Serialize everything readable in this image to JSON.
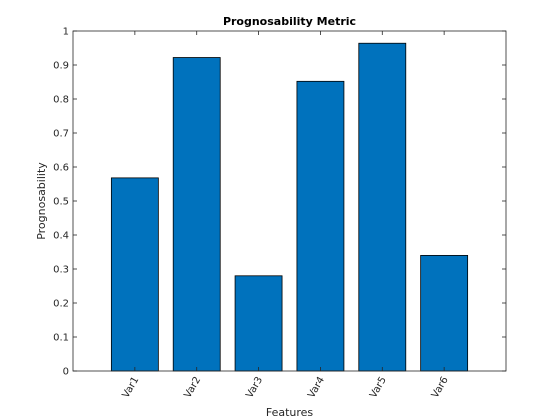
{
  "chart_data": {
    "type": "bar",
    "title": "Prognosability Metric",
    "xlabel": "Features",
    "ylabel": "Prognosability",
    "categories": [
      "Var1",
      "Var2",
      "Var3",
      "Var4",
      "Var5",
      "Var6"
    ],
    "values": [
      0.568,
      0.922,
      0.28,
      0.852,
      0.964,
      0.34
    ],
    "ylim": [
      0,
      1
    ],
    "yticks": [
      "0",
      "0.1",
      "0.2",
      "0.3",
      "0.4",
      "0.5",
      "0.6",
      "0.7",
      "0.8",
      "0.9",
      "1"
    ],
    "grid": false,
    "legend": "none",
    "bar_color": "#0072BD",
    "edge_color": "#000000"
  }
}
